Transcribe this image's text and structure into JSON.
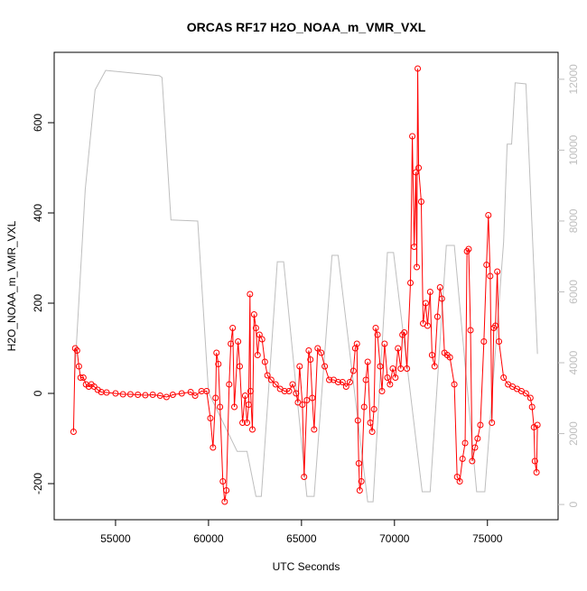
{
  "chart_data": {
    "type": "line",
    "title": "ORCAS RF17 H2O_NOAA_m_VMR_VXL",
    "xlabel": "UTC Seconds",
    "ylabel": "H2O_NOAA_m_VMR_VXL",
    "xlim": [
      51700,
      78800
    ],
    "xticks": [
      55000,
      60000,
      65000,
      70000,
      75000
    ],
    "ylim": [
      -280,
      756
    ],
    "yticks": [
      -200,
      0,
      200,
      400,
      600
    ],
    "y2lim": [
      -430,
      12760
    ],
    "y2ticks": [
      0,
      2000,
      4000,
      6000,
      8000,
      10000,
      12000
    ],
    "y2_tick_color": "#bebebe",
    "grid": false,
    "series": [
      {
        "color": "#ff0000",
        "marker": "circle",
        "x": [
          52740,
          52830,
          52930,
          53030,
          53120,
          53270,
          53410,
          53560,
          53700,
          53850,
          54040,
          54230,
          54520,
          55000,
          55400,
          55800,
          56200,
          56600,
          57000,
          57400,
          57740,
          58080,
          58560,
          59040,
          59280,
          59620,
          59900,
          60100,
          60240,
          60380,
          60430,
          60530,
          60620,
          60770,
          60870,
          60960,
          61110,
          61200,
          61300,
          61390,
          61590,
          61680,
          61830,
          61970,
          62070,
          62160,
          62230,
          62260,
          62360,
          62450,
          62550,
          62640,
          62740,
          62880,
          63030,
          63170,
          63370,
          63610,
          63850,
          64090,
          64330,
          64520,
          64710,
          64810,
          64900,
          65050,
          65140,
          65290,
          65390,
          65480,
          65580,
          65680,
          65870,
          66060,
          66250,
          66490,
          66730,
          66970,
          67210,
          67400,
          67600,
          67790,
          67890,
          67980,
          68030,
          68080,
          68130,
          68220,
          68370,
          68460,
          68560,
          68700,
          68800,
          68900,
          68990,
          69090,
          69230,
          69330,
          69470,
          69620,
          69760,
          69910,
          70050,
          70190,
          70340,
          70430,
          70530,
          70670,
          70860,
          70960,
          71060,
          71150,
          71200,
          71250,
          71300,
          71440,
          71540,
          71680,
          71780,
          71920,
          72020,
          72160,
          72310,
          72450,
          72550,
          72690,
          72840,
          72980,
          73220,
          73370,
          73510,
          73660,
          73800,
          73900,
          73990,
          74090,
          74180,
          74330,
          74470,
          74620,
          74810,
          74950,
          75050,
          75150,
          75240,
          75340,
          75430,
          75530,
          75620,
          75870,
          76110,
          76350,
          76590,
          76830,
          77070,
          77310,
          77400,
          77500,
          77550,
          77640,
          77690
        ],
        "values": [
          -85,
          100,
          95,
          60,
          35,
          35,
          20,
          15,
          20,
          15,
          8,
          3,
          2,
          0,
          -2,
          -2,
          -3,
          -4,
          -3,
          -5,
          -8,
          -3,
          0,
          3,
          -5,
          5,
          5,
          -55,
          -120,
          -10,
          90,
          65,
          -30,
          -195,
          -240,
          -215,
          20,
          110,
          145,
          -30,
          115,
          60,
          -65,
          -5,
          -65,
          -25,
          220,
          5,
          -80,
          175,
          145,
          85,
          130,
          120,
          70,
          40,
          30,
          20,
          10,
          5,
          5,
          20,
          0,
          -20,
          60,
          -25,
          -185,
          -15,
          95,
          75,
          -10,
          -80,
          100,
          90,
          60,
          30,
          30,
          25,
          25,
          15,
          25,
          50,
          100,
          110,
          -60,
          -155,
          -215,
          -195,
          -30,
          30,
          70,
          -65,
          -85,
          -35,
          145,
          130,
          60,
          5,
          110,
          35,
          20,
          55,
          35,
          100,
          55,
          130,
          135,
          55,
          245,
          570,
          325,
          490,
          280,
          720,
          500,
          425,
          155,
          200,
          150,
          225,
          85,
          60,
          170,
          235,
          210,
          90,
          85,
          80,
          20,
          -185,
          -195,
          -145,
          -110,
          315,
          320,
          140,
          -150,
          -120,
          -100,
          -70,
          115,
          285,
          395,
          260,
          -65,
          145,
          150,
          270,
          115,
          35,
          20,
          15,
          10,
          5,
          0,
          -10,
          -30,
          -75,
          -150,
          -175,
          -70
        ]
      },
      {
        "color": "#bebebe",
        "axis": "y2",
        "x": [
          52790,
          53370,
          53900,
          54470,
          57360,
          57500,
          57980,
          59420,
          60000,
          61540,
          62070,
          62550,
          62840,
          63700,
          64040,
          65290,
          65680,
          66640,
          66970,
          68560,
          68850,
          69620,
          69950,
          71490,
          71920,
          72790,
          73220,
          74420,
          74860,
          75870,
          76060,
          76300,
          76490,
          77070,
          77690
        ],
        "values": [
          3540,
          8890,
          11700,
          12250,
          12100,
          12050,
          8030,
          8000,
          3160,
          1500,
          1500,
          230,
          230,
          6850,
          6850,
          230,
          230,
          7030,
          7030,
          76,
          76,
          7110,
          7110,
          360,
          360,
          7310,
          7310,
          360,
          360,
          7410,
          10170,
          10170,
          11900,
          11870,
          4250
        ]
      }
    ]
  }
}
